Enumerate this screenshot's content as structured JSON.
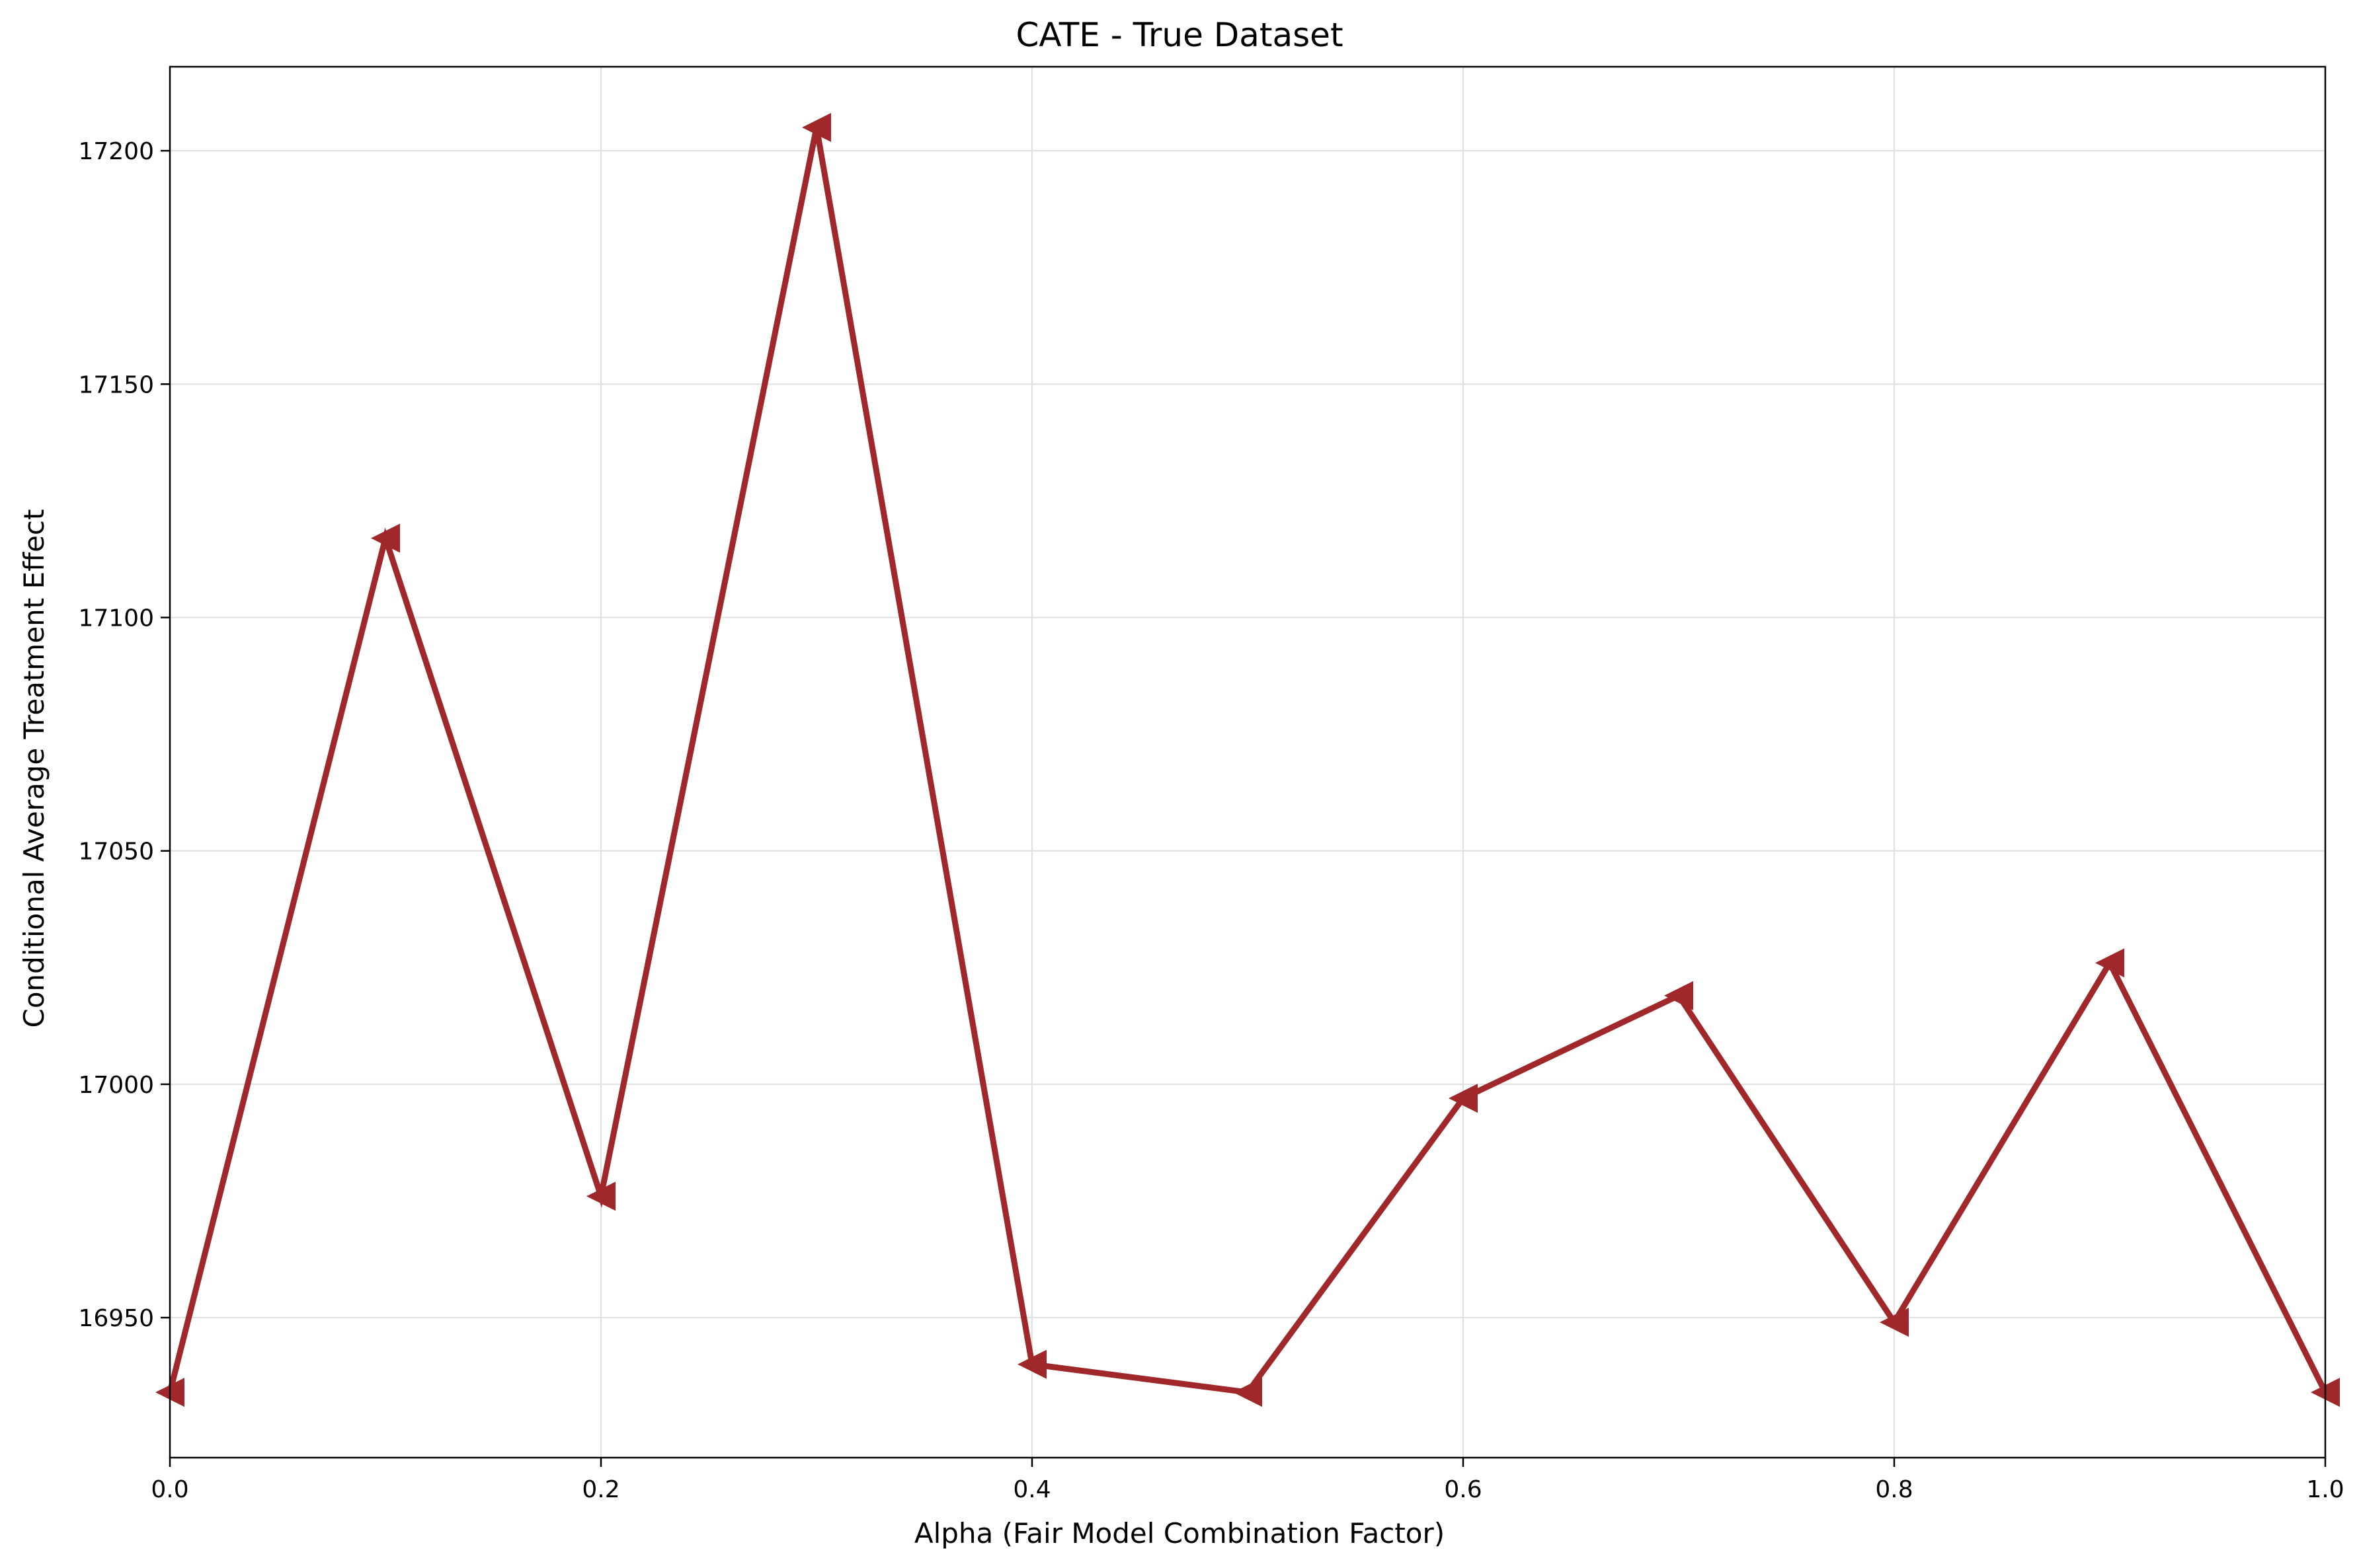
{
  "chart_data": {
    "type": "line",
    "title": "CATE - True Dataset",
    "xlabel": "Alpha (Fair Model Combination Factor)",
    "ylabel": "Conditional Average Treatment Effect",
    "x": [
      0.0,
      0.1,
      0.2,
      0.3,
      0.4,
      0.5,
      0.6,
      0.7,
      0.8,
      0.9,
      1.0
    ],
    "series": [
      {
        "values": [
          16934,
          17117,
          16976,
          17205,
          16940,
          16934,
          16997,
          17019,
          16949,
          17026,
          16934
        ],
        "color": "#a0282b",
        "marker": "left-triangle"
      }
    ],
    "xlim": [
      0.0,
      1.0
    ],
    "ylim": [
      16920,
      17218
    ],
    "xticks": [
      0.0,
      0.2,
      0.4,
      0.6,
      0.8,
      1.0
    ],
    "xtick_labels": [
      "0.0",
      "0.2",
      "0.4",
      "0.6",
      "0.8",
      "1.0"
    ],
    "yticks": [
      16950,
      17000,
      17050,
      17100,
      17150,
      17200
    ],
    "ytick_labels": [
      "16950",
      "17000",
      "17050",
      "17100",
      "17150",
      "17200"
    ],
    "grid": true,
    "legend": "none"
  }
}
